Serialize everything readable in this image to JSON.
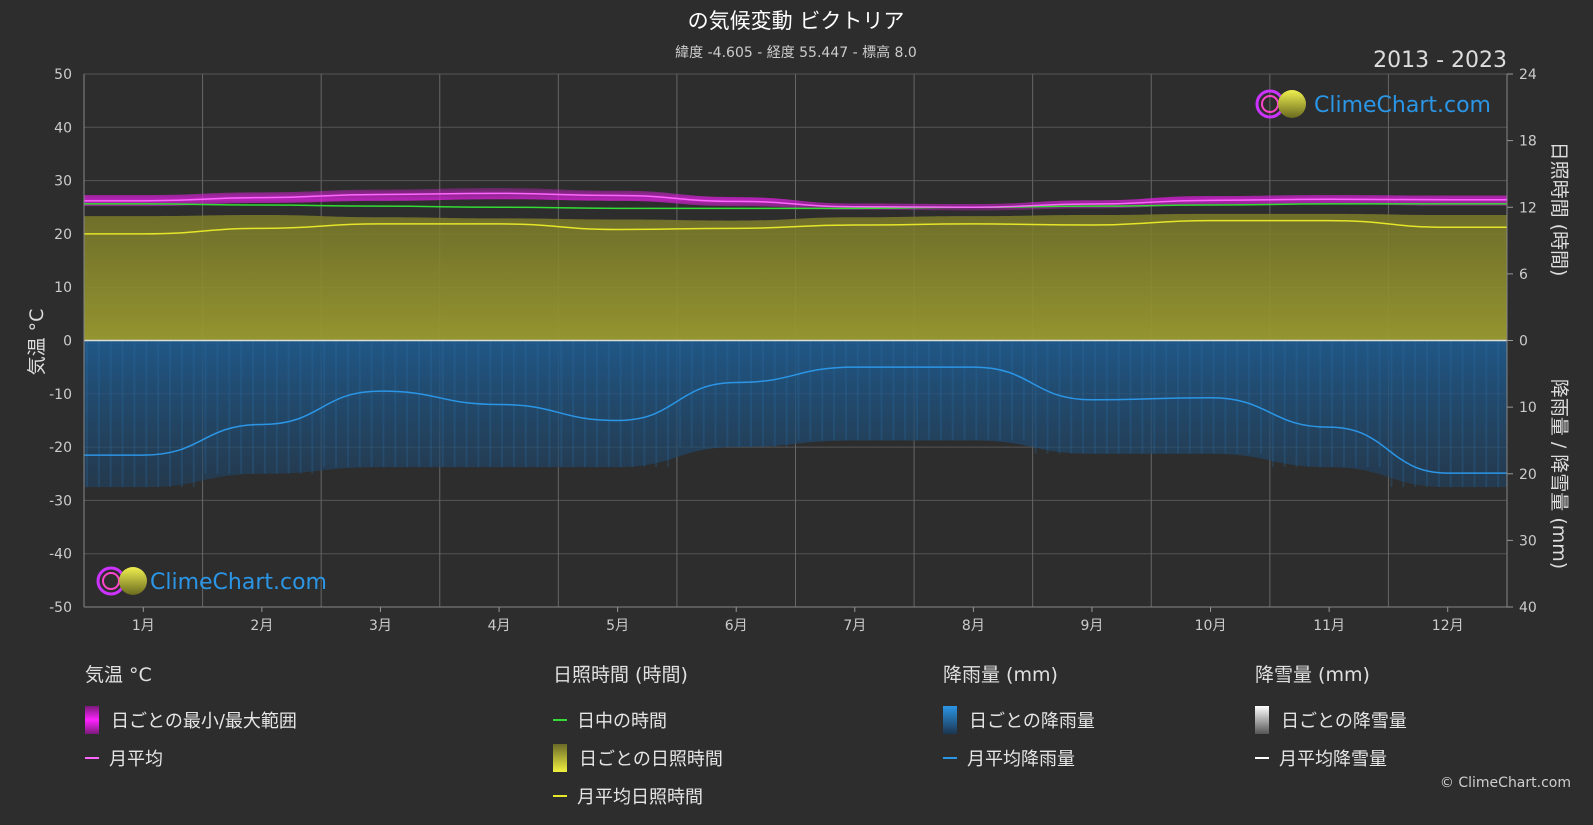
{
  "title": "の気候変動 ビクトリア",
  "subtitle": "緯度 -4.605 - 経度 55.447 - 標高 8.0",
  "year_range": "2013 - 2023",
  "logo_text": "ClimeChart.com",
  "copyright": "© ClimeChart.com",
  "colors": {
    "background": "#2d2d2d",
    "grid": "#555555",
    "temp_range": "#e020e0",
    "temp_avg": "#ff66ff",
    "daylight": "#33dd33",
    "sunshine_fill": "#8c8c2e",
    "sunshine_avg": "#e5e52a",
    "rain_fill": "#1e4f7c",
    "rain_avg": "#2b96e6",
    "snow": "#ffffff",
    "logo_text": "#2b96e6"
  },
  "chart_data": {
    "type": "line",
    "months": [
      "1月",
      "2月",
      "3月",
      "4月",
      "5月",
      "6月",
      "7月",
      "8月",
      "9月",
      "10月",
      "11月",
      "12月"
    ],
    "left_axis": {
      "label": "気温 °C",
      "ylim": [
        -50,
        50
      ],
      "ticks": [
        50,
        40,
        30,
        20,
        10,
        0,
        -10,
        -20,
        -30,
        -40,
        -50
      ]
    },
    "right_axis_top": {
      "label": "日照時間 (時間)",
      "ylim": [
        0,
        24
      ],
      "ticks": [
        24,
        18,
        12,
        6,
        0
      ]
    },
    "right_axis_bottom": {
      "label": "降雨量 / 降雪量 (mm)",
      "ylim": [
        0,
        40
      ],
      "ticks": [
        0,
        10,
        20,
        30,
        40
      ]
    },
    "grid": true,
    "series": [
      {
        "name": "日ごとの最小/最大範囲",
        "axis": "temp",
        "type": "band",
        "low": [
          25.2,
          25.8,
          26.2,
          26.5,
          26.2,
          25.2,
          24.5,
          24.4,
          24.8,
          25.4,
          25.6,
          25.3
        ],
        "high": [
          27.3,
          27.8,
          28.3,
          28.6,
          28.1,
          26.9,
          25.7,
          25.6,
          26.3,
          27.1,
          27.3,
          27.2
        ]
      },
      {
        "name": "月平均",
        "axis": "temp",
        "type": "line",
        "values": [
          26.2,
          26.8,
          27.4,
          27.6,
          27.2,
          26.1,
          25.1,
          25.0,
          25.6,
          26.3,
          26.5,
          26.4
        ]
      },
      {
        "name": "日中の時間",
        "axis": "sun",
        "type": "line",
        "values": [
          12.3,
          12.2,
          12.1,
          12.0,
          11.9,
          11.9,
          11.9,
          12.0,
          12.1,
          12.2,
          12.3,
          12.3
        ]
      },
      {
        "name": "日ごとの日照時間",
        "axis": "sun",
        "type": "area",
        "values": [
          11.2,
          11.3,
          11.1,
          11.0,
          10.9,
          10.8,
          11.1,
          11.2,
          11.3,
          11.4,
          11.4,
          11.3
        ]
      },
      {
        "name": "月平均日照時間",
        "axis": "sun",
        "type": "line",
        "values": [
          9.6,
          10.1,
          10.5,
          10.5,
          10.0,
          10.1,
          10.4,
          10.5,
          10.4,
          10.8,
          10.8,
          10.2
        ]
      },
      {
        "name": "日ごとの降雨量",
        "axis": "rain",
        "type": "area",
        "values": [
          22,
          20,
          19,
          19,
          19,
          16,
          15,
          15,
          17,
          17,
          19,
          22
        ]
      },
      {
        "name": "月平均降雨量",
        "axis": "rain",
        "type": "line",
        "values": [
          17.2,
          12.6,
          7.6,
          9.6,
          12.0,
          6.3,
          4.0,
          4.0,
          8.9,
          8.6,
          13.0,
          19.9
        ]
      },
      {
        "name": "日ごとの降雪量",
        "axis": "rain",
        "type": "area",
        "values": [
          0,
          0,
          0,
          0,
          0,
          0,
          0,
          0,
          0,
          0,
          0,
          0
        ]
      },
      {
        "name": "月平均降雪量",
        "axis": "rain",
        "type": "line",
        "values": [
          0,
          0,
          0,
          0,
          0,
          0,
          0,
          0,
          0,
          0,
          0,
          0
        ]
      }
    ]
  },
  "legend": {
    "groups": [
      {
        "title": "気温 °C",
        "items": [
          "日ごとの最小/最大範囲",
          "月平均"
        ]
      },
      {
        "title": "日照時間 (時間)",
        "items": [
          "日中の時間",
          "日ごとの日照時間",
          "月平均日照時間"
        ]
      },
      {
        "title": "降雨量 (mm)",
        "items": [
          "日ごとの降雨量",
          "月平均降雨量"
        ]
      },
      {
        "title": "降雪量 (mm)",
        "items": [
          "日ごとの降雪量",
          "月平均降雪量"
        ]
      }
    ]
  }
}
